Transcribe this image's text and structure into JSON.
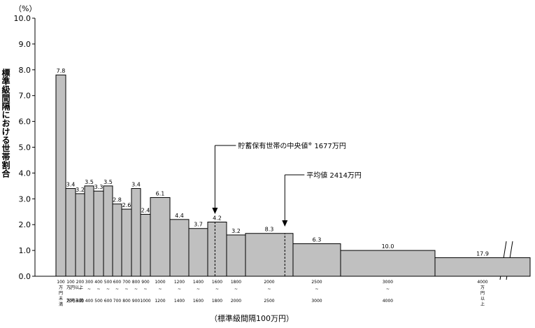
{
  "chart_data": {
    "type": "bar",
    "ylabel": "標準級間隔における世帯割合",
    "y_unit": "（%）",
    "xlabel": "（標準級間隔100万円）",
    "ylim": [
      0,
      10.0
    ],
    "yticks": [
      "0.0",
      "1.0",
      "2.0",
      "3.0",
      "4.0",
      "5.0",
      "6.0",
      "7.0",
      "8.0",
      "9.0",
      "10.0"
    ],
    "bars": [
      {
        "value": 7.8,
        "label": "7.8",
        "from": "100",
        "to": "万円未満"
      },
      {
        "value": 3.4,
        "label": "3.4",
        "from": "100",
        "to": "200"
      },
      {
        "value": 3.2,
        "label": "3.2",
        "from": "200",
        "to": "300"
      },
      {
        "value": 3.5,
        "label": "3.5",
        "from": "300",
        "to": "400"
      },
      {
        "value": 3.3,
        "label": "3.3",
        "from": "400",
        "to": "500"
      },
      {
        "value": 3.5,
        "label": "3.5",
        "from": "500",
        "to": "600"
      },
      {
        "value": 2.8,
        "label": "2.8",
        "from": "600",
        "to": "700"
      },
      {
        "value": 2.6,
        "label": "2.6",
        "from": "700",
        "to": "800"
      },
      {
        "value": 3.4,
        "label": "3.4",
        "from": "800",
        "to": "900"
      },
      {
        "value": 2.4,
        "label": "2.4",
        "from": "900",
        "to": "1000"
      },
      {
        "value": 3.05,
        "label": "6.1",
        "from": "1000",
        "to": "1200"
      },
      {
        "value": 2.2,
        "label": "4.4",
        "from": "1200",
        "to": "1400"
      },
      {
        "value": 1.85,
        "label": "3.7",
        "from": "1400",
        "to": "1600"
      },
      {
        "value": 2.1,
        "label": "4.2",
        "from": "1600",
        "to": "1800"
      },
      {
        "value": 1.6,
        "label": "3.2",
        "from": "1800",
        "to": "2000"
      },
      {
        "value": 1.66,
        "label": "8.3",
        "from": "2000",
        "to": "2500"
      },
      {
        "value": 1.26,
        "label": "6.3",
        "from": "2500",
        "to": "3000"
      },
      {
        "value": 1.0,
        "label": "10.0",
        "from": "3000",
        "to": "4000"
      },
      {
        "value": 0.72,
        "label": "17.9",
        "from": "4000",
        "to": "万円以上"
      }
    ],
    "x_label_row1": [
      "100",
      "100",
      "200",
      "300",
      "400",
      "500",
      "600",
      "700",
      "800",
      "900",
      "1000",
      "1200",
      "1400",
      "1600",
      "1800",
      "2000",
      "2500",
      "3000",
      "4000"
    ],
    "x_label_row3": [
      "",
      "200",
      "300",
      "400",
      "500",
      "600",
      "700",
      "800",
      "900",
      "1000",
      "1200",
      "1400",
      "1600",
      "1800",
      "2000",
      "2500",
      "3000",
      "4000",
      ""
    ],
    "first_bar_labels": {
      "row1": "100",
      "stack": [
        "万",
        "円",
        "未",
        "満"
      ]
    },
    "second_bar_labels": {
      "top": "万円以上",
      "bottom": "万円未満"
    },
    "last_bar_labels": {
      "top": "4000",
      "stack": [
        "万",
        "円",
        "以",
        "上"
      ]
    },
    "annotations": [
      {
        "text": "貯蓄保有世帯の中央値",
        "mark": "※",
        "value_text": "1677万円",
        "x_value": 1677
      },
      {
        "text": "平均値",
        "value_text": "2414万円",
        "x_value": 2414
      }
    ]
  }
}
